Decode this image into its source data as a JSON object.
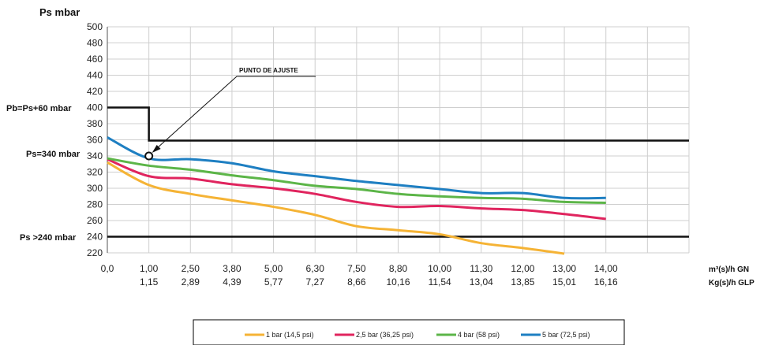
{
  "chart_data": {
    "type": "line",
    "ylabel": "Ps  mbar",
    "ylim": [
      220,
      500
    ],
    "yticks": [
      220,
      240,
      260,
      280,
      300,
      320,
      340,
      360,
      380,
      400,
      420,
      440,
      460,
      480,
      500
    ],
    "xlim": [
      0,
      14
    ],
    "x_ticks_gn": [
      "0,0",
      "1,00",
      "2,50",
      "3,80",
      "5,00",
      "6,30",
      "7,50",
      "8,80",
      "10,00",
      "11,30",
      "12,00",
      "13,00",
      "14,00"
    ],
    "x_ticks_glp": [
      "1,15",
      "2,89",
      "4,39",
      "5,77",
      "7,27",
      "8,66",
      "10,16",
      "11,54",
      "13,04",
      "13,85",
      "15,01",
      "16,16"
    ],
    "xlabel_gn": "m³(s)/h GN",
    "xlabel_glp": "Kg(s)/h GLP",
    "x": [
      0,
      1,
      2,
      3,
      4,
      5,
      6,
      7,
      8,
      9,
      10,
      11,
      12,
      13,
      14
    ],
    "series": [
      {
        "name": "1 bar (14,5 psi)",
        "color": "#F5B335",
        "values": [
          332,
          304,
          293,
          285,
          277,
          267,
          253,
          248,
          243,
          232,
          226,
          219,
          null,
          null,
          null
        ]
      },
      {
        "name": "2,5 bar (36,25 psi)",
        "color": "#E0245E",
        "values": [
          336,
          315,
          312,
          305,
          300,
          293,
          283,
          277,
          278,
          275,
          273,
          268,
          262,
          null,
          null
        ]
      },
      {
        "name": "4 bar (58 psi)",
        "color": "#5CB548",
        "values": [
          337,
          328,
          323,
          316,
          310,
          303,
          299,
          293,
          290,
          288,
          287,
          283,
          282,
          null,
          null
        ]
      },
      {
        "name": "5 bar (72,5 psi)",
        "color": "#1E7FC2",
        "values": [
          363,
          337,
          336,
          331,
          321,
          315,
          309,
          304,
          299,
          294,
          294,
          288,
          288,
          null,
          null
        ]
      }
    ],
    "reference_lines": {
      "pb": {
        "label": "Pb=Ps+60 mbar",
        "value": 400,
        "drop_x": 1,
        "after_value": 359
      },
      "ps": {
        "label": "Ps=340 mbar",
        "value": 340
      },
      "min": {
        "label": "Ps >240 mbar",
        "value": 240
      }
    },
    "annotation": {
      "label": "PUNTO DE AJUSTE",
      "x": 1,
      "y": 340
    },
    "legend_position": "bottom",
    "grid": true
  }
}
